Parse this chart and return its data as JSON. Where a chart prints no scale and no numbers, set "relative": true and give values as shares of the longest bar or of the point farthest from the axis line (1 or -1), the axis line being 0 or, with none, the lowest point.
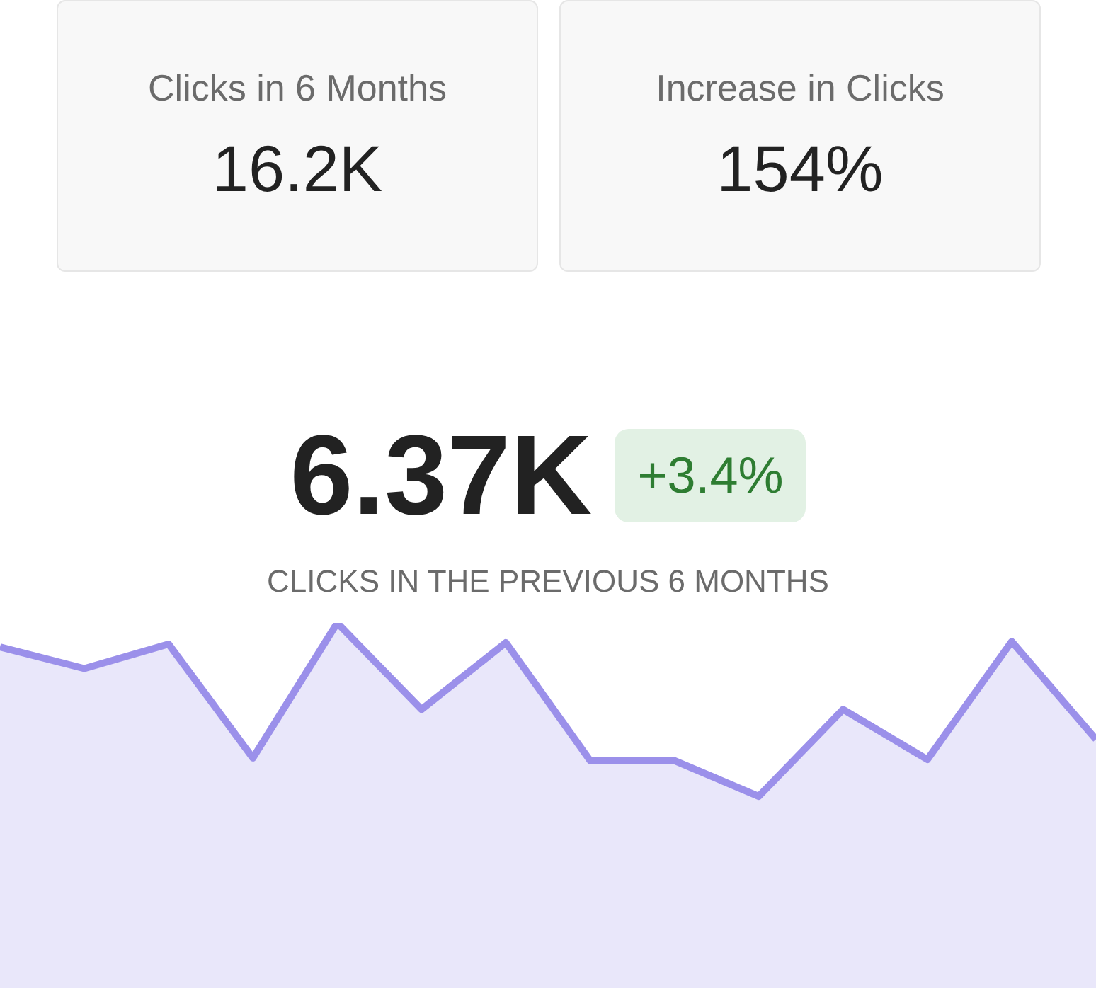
{
  "chart_data": [
    {
      "type": "other",
      "annotations": [
        "Clicks in 6 Months",
        "16.2K",
        "Increase in Clicks",
        "154%"
      ]
    },
    {
      "type": "area",
      "title": "6.37K",
      "subtitle": "CLICKS IN THE PREVIOUS 6 MONTHS",
      "annotations": [
        "+3.4%"
      ],
      "relative": true,
      "categories": [
        null,
        null,
        null,
        null,
        null,
        null,
        null,
        null,
        null,
        null,
        null,
        null,
        null,
        null
      ],
      "series": [
        {
          "color": "#9b90ea",
          "values": [
            0.934,
            0.875,
            0.942,
            0.63,
            1,
            0.763,
            0.946,
            0.623,
            0.623,
            0.525,
            0.763,
            0.626,
            0.949,
            0.681
          ]
        }
      ]
    }
  ]
}
